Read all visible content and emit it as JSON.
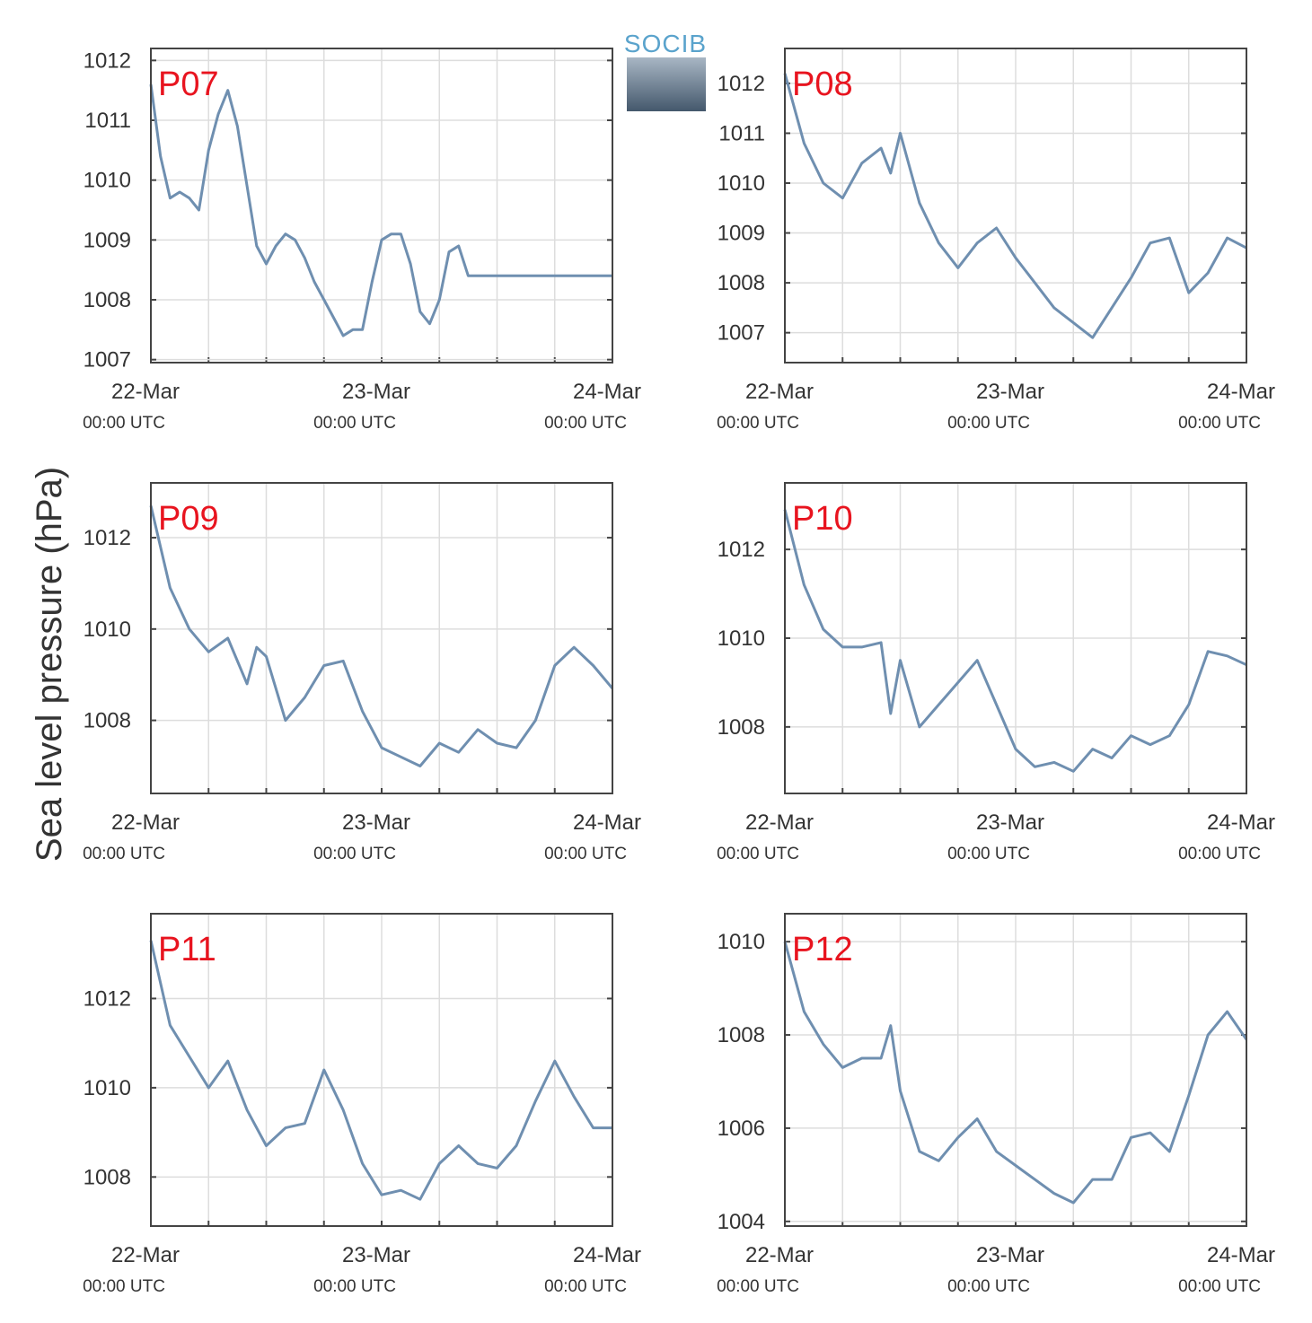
{
  "logo": {
    "text": "SOCIB"
  },
  "ylabel": "Sea level pressure (hPa)",
  "time_labels": [
    {
      "date": "22-Mar",
      "time": "00:00 UTC"
    },
    {
      "date": "23-Mar",
      "time": "00:00 UTC"
    },
    {
      "date": "24-Mar",
      "time": "00:00 UTC"
    }
  ],
  "colors": {
    "line": "#6f8fb0",
    "label": "#e8141f",
    "grid": "#dddddd",
    "axis": "#444444"
  },
  "chart_data": [
    {
      "type": "line",
      "label": "P07",
      "ylim": [
        1006.95,
        1012.2
      ],
      "yticks": [
        1007,
        1008,
        1009,
        1010,
        1011,
        1012
      ],
      "x_hours": [
        0,
        1,
        2,
        3,
        4,
        5,
        6,
        7,
        8,
        9,
        10,
        11,
        12,
        13,
        14,
        15,
        16,
        17,
        18,
        19,
        20,
        21,
        22,
        23,
        24,
        25,
        26,
        27,
        28,
        29,
        30,
        31,
        32,
        33,
        34,
        35,
        36,
        37,
        38,
        39,
        40,
        41,
        42,
        43,
        44,
        45,
        46,
        47,
        48
      ],
      "values": [
        1011.6,
        1010.4,
        1009.7,
        1009.8,
        1009.7,
        1009.5,
        1010.5,
        1011.1,
        1011.5,
        1010.9,
        1009.9,
        1008.9,
        1008.6,
        1008.9,
        1009.1,
        1009.0,
        1008.7,
        1008.3,
        1008.0,
        1007.7,
        1007.4,
        1007.5,
        1007.5,
        1008.3,
        1009.0,
        1009.1,
        1009.1,
        1008.6,
        1007.8,
        1007.6,
        1008.0,
        1008.8,
        1008.9,
        1008.4,
        1008.4,
        1008.4,
        1008.4,
        1008.4,
        1008.4,
        1008.4,
        1008.4,
        1008.4,
        1008.4,
        1008.4,
        1008.4,
        1008.4,
        1008.4,
        1008.4,
        1008.4
      ]
    },
    {
      "type": "line",
      "label": "P08",
      "ylim": [
        1006.4,
        1012.7
      ],
      "yticks": [
        1007,
        1008,
        1009,
        1010,
        1011,
        1012
      ],
      "x_hours": [
        0,
        2,
        4,
        6,
        8,
        10,
        11,
        12,
        14,
        16,
        18,
        20,
        22,
        24,
        26,
        28,
        30,
        32,
        34,
        36,
        38,
        40,
        42,
        44,
        46,
        48
      ],
      "values": [
        1012.2,
        1010.8,
        1010.0,
        1009.7,
        1010.4,
        1010.7,
        1010.2,
        1011.0,
        1009.6,
        1008.8,
        1008.3,
        1008.8,
        1009.1,
        1008.5,
        1008.0,
        1007.5,
        1007.2,
        1006.9,
        1007.5,
        1008.1,
        1008.8,
        1008.9,
        1007.8,
        1008.2,
        1008.9,
        1008.7
      ]
    },
    {
      "type": "line",
      "label": "P09",
      "ylim": [
        1006.4,
        1013.2
      ],
      "yticks": [
        1008,
        1010,
        1012
      ],
      "x_hours": [
        0,
        2,
        4,
        6,
        8,
        10,
        11,
        12,
        14,
        16,
        18,
        20,
        22,
        24,
        26,
        28,
        30,
        32,
        34,
        36,
        38,
        40,
        42,
        44,
        46,
        48
      ],
      "values": [
        1012.7,
        1010.9,
        1010.0,
        1009.5,
        1009.8,
        1008.8,
        1009.6,
        1009.4,
        1008.0,
        1008.5,
        1009.2,
        1009.3,
        1008.2,
        1007.4,
        1007.2,
        1007.0,
        1007.5,
        1007.3,
        1007.8,
        1007.5,
        1007.4,
        1008.0,
        1009.2,
        1009.6,
        1009.2,
        1008.7
      ]
    },
    {
      "type": "line",
      "label": "P10",
      "ylim": [
        1006.5,
        1013.5
      ],
      "yticks": [
        1008,
        1010,
        1012
      ],
      "x_hours": [
        0,
        2,
        4,
        6,
        8,
        10,
        11,
        12,
        14,
        16,
        18,
        20,
        22,
        24,
        26,
        28,
        30,
        32,
        34,
        36,
        38,
        40,
        42,
        44,
        46,
        48
      ],
      "values": [
        1012.9,
        1011.2,
        1010.2,
        1009.8,
        1009.8,
        1009.9,
        1008.3,
        1009.5,
        1008.0,
        1008.5,
        1009.0,
        1009.5,
        1008.5,
        1007.5,
        1007.1,
        1007.2,
        1007.0,
        1007.5,
        1007.3,
        1007.8,
        1007.6,
        1007.8,
        1008.5,
        1009.7,
        1009.6,
        1009.4
      ]
    },
    {
      "type": "line",
      "label": "P11",
      "ylim": [
        1006.9,
        1013.9
      ],
      "yticks": [
        1008,
        1010,
        1012
      ],
      "x_hours": [
        0,
        2,
        4,
        6,
        8,
        10,
        12,
        14,
        16,
        18,
        20,
        22,
        24,
        26,
        28,
        30,
        32,
        34,
        36,
        38,
        40,
        42,
        44,
        46,
        48
      ],
      "values": [
        1013.3,
        1011.4,
        1010.7,
        1010.0,
        1010.6,
        1009.5,
        1008.7,
        1009.1,
        1009.2,
        1010.4,
        1009.5,
        1008.3,
        1007.6,
        1007.7,
        1007.5,
        1008.3,
        1008.7,
        1008.3,
        1008.2,
        1008.7,
        1009.7,
        1010.6,
        1009.8,
        1009.1,
        1009.1
      ]
    },
    {
      "type": "line",
      "label": "P12",
      "ylim": [
        1003.9,
        1010.6
      ],
      "yticks": [
        1004,
        1006,
        1008,
        1010
      ],
      "x_hours": [
        0,
        2,
        4,
        6,
        8,
        10,
        11,
        12,
        14,
        16,
        18,
        20,
        22,
        24,
        26,
        28,
        30,
        32,
        34,
        36,
        38,
        40,
        42,
        44,
        46,
        48
      ],
      "values": [
        1010.0,
        1008.5,
        1007.8,
        1007.3,
        1007.5,
        1007.5,
        1008.2,
        1006.8,
        1005.5,
        1005.3,
        1005.8,
        1006.2,
        1005.5,
        1005.2,
        1004.9,
        1004.6,
        1004.4,
        1004.9,
        1004.9,
        1005.8,
        1005.9,
        1005.5,
        1006.7,
        1008.0,
        1008.5,
        1007.9
      ]
    }
  ]
}
